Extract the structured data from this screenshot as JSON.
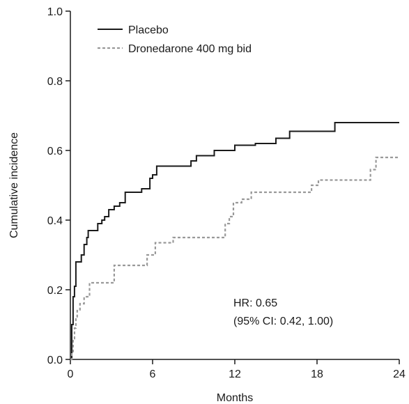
{
  "chart_data": {
    "type": "line",
    "title": "",
    "xlabel": "Months",
    "ylabel": "Cumulative incidence",
    "xlim": [
      0,
      24
    ],
    "ylim": [
      0,
      1.0
    ],
    "x_ticks": [
      0,
      6,
      12,
      18,
      24
    ],
    "x_tick_labels": [
      "0",
      "6",
      "12",
      "18",
      "24"
    ],
    "y_ticks": [
      0,
      0.2,
      0.4,
      0.6,
      0.8,
      1.0
    ],
    "y_tick_labels": [
      "0.0",
      "0.2",
      "0.4",
      "0.6",
      "0.8",
      "1.0"
    ],
    "step": true,
    "grid": false,
    "legend_position": "top-left",
    "annotation": [
      "HR: 0.65",
      "(95% CI: 0.42, 1.00)"
    ],
    "series": [
      {
        "name": "Placebo",
        "color": "#1a1a1a",
        "style": "solid",
        "x": [
          0,
          0.1,
          0.2,
          0.3,
          0.4,
          0.8,
          1.0,
          1.2,
          1.3,
          1.5,
          2.0,
          2.3,
          2.5,
          2.8,
          3.2,
          3.6,
          4.0,
          4.5,
          5.2,
          5.8,
          6.0,
          6.3,
          7.5,
          8.8,
          9.2,
          10.5,
          12.0,
          13.5,
          15.0,
          16.0,
          17.5,
          19.3,
          24.0
        ],
        "y": [
          0,
          0.1,
          0.18,
          0.21,
          0.28,
          0.3,
          0.33,
          0.35,
          0.37,
          0.37,
          0.39,
          0.4,
          0.41,
          0.43,
          0.44,
          0.45,
          0.48,
          0.48,
          0.49,
          0.52,
          0.53,
          0.555,
          0.555,
          0.57,
          0.585,
          0.6,
          0.615,
          0.62,
          0.635,
          0.655,
          0.655,
          0.68,
          0.68
        ]
      },
      {
        "name": "Dronedarone 400 mg bid",
        "color": "#999999",
        "style": "dashed",
        "x": [
          0,
          0.1,
          0.2,
          0.3,
          0.4,
          0.5,
          0.7,
          1.0,
          1.4,
          2.0,
          3.2,
          3.7,
          5.6,
          6.2,
          7.5,
          9.0,
          11.3,
          11.6,
          11.9,
          12.2,
          12.5,
          13.2,
          14.5,
          17.6,
          18.1,
          19.5,
          20.5,
          21.9,
          22.3,
          24.0
        ],
        "y": [
          0,
          0.02,
          0.06,
          0.09,
          0.12,
          0.14,
          0.16,
          0.18,
          0.22,
          0.22,
          0.27,
          0.27,
          0.3,
          0.335,
          0.35,
          0.35,
          0.39,
          0.41,
          0.45,
          0.45,
          0.46,
          0.48,
          0.48,
          0.5,
          0.515,
          0.515,
          0.515,
          0.545,
          0.58,
          0.58
        ]
      }
    ]
  }
}
